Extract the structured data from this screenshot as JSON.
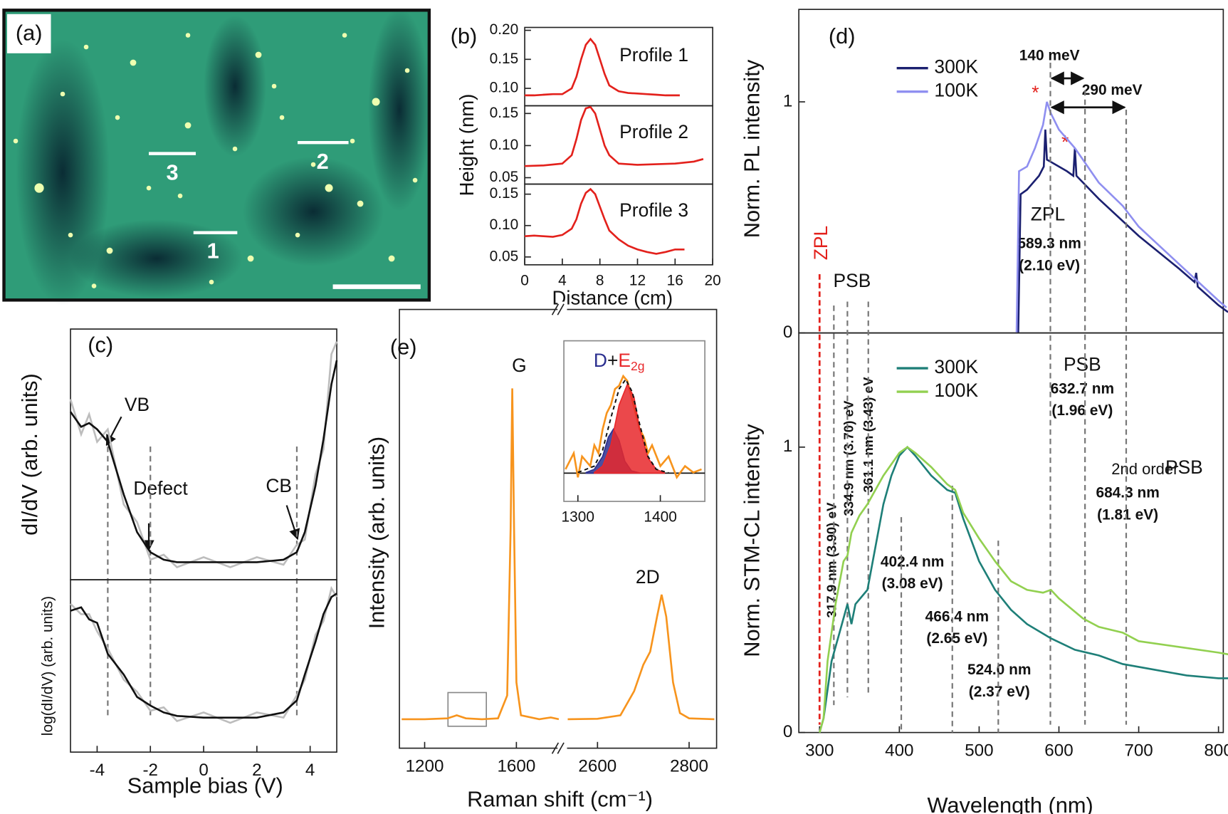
{
  "panel_a": {
    "label": "(a)",
    "line_labels": [
      "1",
      "2",
      "3"
    ]
  },
  "panel_labels": {
    "b": "(b)",
    "c": "(c)",
    "d": "(d)",
    "e": "(e)"
  },
  "chart_data": [
    {
      "type": "line",
      "xlim": [
        0,
        20
      ],
      "ylim": [
        0.07,
        0.205
      ],
      "yticks": [
        {
          "value": 0.1,
          "label": "0.10"
        },
        0.15,
        {
          "value": 0.2,
          "label": "0.20"
        }
      ],
      "annotation": "Profile 1",
      "series": [
        {
          "color": "#e3211c",
          "x": [
            0,
            1,
            2,
            3,
            4,
            5,
            5.5,
            6,
            6.5,
            7,
            7.5,
            8,
            8.5,
            9,
            10,
            11,
            12,
            13,
            14,
            15,
            16,
            16.5
          ],
          "values": [
            0.088,
            0.088,
            0.089,
            0.09,
            0.09,
            0.1,
            0.12,
            0.15,
            0.175,
            0.185,
            0.175,
            0.15,
            0.125,
            0.105,
            0.095,
            0.092,
            0.091,
            0.09,
            0.089,
            0.088,
            0.088,
            0.088
          ]
        }
      ]
    },
    {
      "type": "line",
      "xlim": [
        0,
        20
      ],
      "ylim": [
        0.04,
        0.162
      ],
      "yticks": [
        0.05,
        {
          "value": 0.1,
          "label": "0.10"
        },
        0.15
      ],
      "ylabel": "Height (nm)",
      "annotation": "Profile 2",
      "series": [
        {
          "color": "#e3211c",
          "x": [
            0,
            2,
            4,
            5,
            5.5,
            6,
            6.5,
            7,
            7.5,
            8,
            8.5,
            9,
            10,
            12,
            14,
            16,
            18,
            19
          ],
          "values": [
            0.068,
            0.069,
            0.072,
            0.085,
            0.11,
            0.14,
            0.158,
            0.16,
            0.15,
            0.125,
            0.1,
            0.085,
            0.072,
            0.07,
            0.071,
            0.072,
            0.075,
            0.079
          ]
        }
      ]
    },
    {
      "type": "line",
      "xlim": [
        0,
        20
      ],
      "ylim": [
        0.0375,
        0.166
      ],
      "yticks": [
        0.05,
        {
          "value": 0.1,
          "label": "0.10"
        },
        0.15
      ],
      "xticks": [
        0,
        4,
        8,
        12,
        16,
        20
      ],
      "xlabel": "Distance (cm)",
      "annotation": "Profile 3",
      "series": [
        {
          "color": "#e3211c",
          "x": [
            0,
            1,
            2,
            3,
            4,
            5,
            5.5,
            6,
            6.5,
            7,
            7.5,
            8,
            8.5,
            9,
            10,
            11,
            12,
            13,
            14,
            15,
            16,
            17
          ],
          "values": [
            0.083,
            0.084,
            0.083,
            0.082,
            0.085,
            0.095,
            0.11,
            0.135,
            0.152,
            0.158,
            0.15,
            0.13,
            0.11,
            0.092,
            0.078,
            0.068,
            0.062,
            0.058,
            0.055,
            0.058,
            0.062,
            0.062
          ]
        }
      ]
    },
    {
      "type": "line",
      "xlim": [
        -5,
        5
      ],
      "ylim": [
        0,
        1
      ],
      "ylabel": "dI/dV (arb. units)",
      "annotations": [
        "VB",
        "Defect",
        "CB"
      ],
      "guides": [
        -3.6,
        -2,
        3.5
      ],
      "series": [
        {
          "color": "#bdbdbd",
          "x": [
            -5,
            -4.6,
            -4.3,
            -4,
            -3.6,
            -3,
            -2.5,
            -2,
            -1.5,
            -1,
            0,
            1,
            2,
            3,
            3.5,
            3.8,
            4.2,
            4.5,
            4.8,
            5
          ],
          "values": [
            0.72,
            0.58,
            0.66,
            0.55,
            0.6,
            0.3,
            0.23,
            0.08,
            0.1,
            0.05,
            0.09,
            0.05,
            0.09,
            0.06,
            0.14,
            0.16,
            0.42,
            0.52,
            0.9,
            0.95
          ]
        },
        {
          "color": "#111111",
          "x": [
            -5,
            -4.6,
            -4.3,
            -4,
            -3.6,
            -3,
            -2.5,
            -2,
            -1.5,
            -1,
            0,
            1,
            2,
            3,
            3.5,
            3.8,
            4.2,
            4.5,
            4.8,
            5
          ],
          "values": [
            0.67,
            0.61,
            0.625,
            0.6,
            0.55,
            0.34,
            0.19,
            0.11,
            0.08,
            0.07,
            0.07,
            0.07,
            0.07,
            0.08,
            0.11,
            0.19,
            0.375,
            0.56,
            0.78,
            0.875
          ]
        }
      ]
    },
    {
      "type": "line",
      "xlim": [
        -5,
        5
      ],
      "ylim": [
        0,
        1
      ],
      "xticks": [
        -4,
        -2,
        0,
        2,
        4
      ],
      "ylabel": "log(dI/dV) (arb. units)",
      "xlabel": "Sample bias (V)",
      "series": [
        {
          "color": "#bdbdbd",
          "x": [
            -5,
            -4.6,
            -4.3,
            -4,
            -3.6,
            -3,
            -2.5,
            -2,
            -1.5,
            -1,
            0,
            1,
            2,
            3,
            3.5,
            3.8,
            4.2,
            4.5,
            4.8,
            5
          ],
          "values": [
            0.86,
            0.8,
            0.8,
            0.7,
            0.6,
            0.42,
            0.35,
            0.24,
            0.26,
            0.18,
            0.23,
            0.17,
            0.23,
            0.2,
            0.33,
            0.42,
            0.68,
            0.76,
            0.95,
            0.9
          ]
        },
        {
          "color": "#111111",
          "x": [
            -5,
            -4.6,
            -4.3,
            -4,
            -3.6,
            -3,
            -2.5,
            -2,
            -1.5,
            -1,
            0,
            1,
            2,
            3,
            3.5,
            3.8,
            4.2,
            4.5,
            4.8,
            5
          ],
          "values": [
            0.82,
            0.84,
            0.77,
            0.75,
            0.57,
            0.45,
            0.32,
            0.27,
            0.23,
            0.21,
            0.2,
            0.2,
            0.2,
            0.23,
            0.3,
            0.45,
            0.64,
            0.8,
            0.9,
            0.92
          ]
        }
      ]
    },
    {
      "type": "line",
      "xlim": [
        1090,
        1790
      ],
      "ylim": [
        0,
        1
      ],
      "xticks": [
        1200,
        1600
      ],
      "ylabel": "Intensity (arb. units)",
      "xlabel": "Raman shift (cm⁻¹)",
      "annotation": "G",
      "series": [
        {
          "color": "#f7941d",
          "x": [
            1100,
            1200,
            1300,
            1340,
            1380,
            1450,
            1520,
            1560,
            1575,
            1582,
            1590,
            1600,
            1620,
            1700,
            1750,
            1785
          ],
          "values": [
            0.066,
            0.066,
            0.068,
            0.075,
            0.068,
            0.066,
            0.068,
            0.12,
            0.5,
            0.82,
            0.5,
            0.15,
            0.075,
            0.066,
            0.07,
            0.066
          ]
        }
      ]
    },
    {
      "type": "line",
      "xlim": [
        2530,
        2860
      ],
      "ylim": [
        0,
        1
      ],
      "xticks": [
        2600,
        2800
      ],
      "annotation": "2D",
      "series": [
        {
          "color": "#f7941d",
          "x": [
            2535,
            2600,
            2650,
            2680,
            2700,
            2715,
            2730,
            2740,
            2750,
            2765,
            2780,
            2800,
            2855
          ],
          "values": [
            0.066,
            0.067,
            0.075,
            0.13,
            0.19,
            0.22,
            0.3,
            0.35,
            0.3,
            0.15,
            0.08,
            0.068,
            0.066
          ]
        }
      ]
    },
    {
      "type": "line",
      "xlim": [
        1283,
        1454
      ],
      "ylim": [
        0,
        1
      ],
      "xticks": [
        1300,
        1400
      ],
      "baseline": 0.176,
      "inset_label": [
        "D",
        "+",
        "E",
        "2g"
      ],
      "series": [
        {
          "color": "#f7941d",
          "x": [
            1285,
            1295,
            1300,
            1305,
            1315,
            1320,
            1325,
            1330,
            1335,
            1340,
            1345,
            1350,
            1355,
            1360,
            1365,
            1370,
            1375,
            1380,
            1385,
            1390,
            1400,
            1410,
            1420,
            1430,
            1440,
            1450
          ],
          "values": [
            0.2,
            0.3,
            0.15,
            0.28,
            0.22,
            0.35,
            0.3,
            0.45,
            0.55,
            0.6,
            0.7,
            0.72,
            0.78,
            0.75,
            0.65,
            0.55,
            0.45,
            0.4,
            0.3,
            0.35,
            0.22,
            0.28,
            0.15,
            0.22,
            0.18,
            0.2
          ]
        },
        {
          "color": "#2b2f8f",
          "fill": true,
          "x": [
            1310,
            1320,
            1330,
            1337,
            1343,
            1350,
            1357,
            1365,
            1375
          ],
          "values": [
            0.18,
            0.2,
            0.28,
            0.4,
            0.45,
            0.38,
            0.25,
            0.19,
            0.177
          ]
        },
        {
          "color": "#e8282b",
          "fill": true,
          "x": [
            1320,
            1330,
            1340,
            1350,
            1360,
            1368,
            1375,
            1385,
            1395,
            1405
          ],
          "values": [
            0.18,
            0.22,
            0.35,
            0.6,
            0.73,
            0.65,
            0.45,
            0.27,
            0.2,
            0.178
          ]
        },
        {
          "color": "#111111",
          "dash": true,
          "x": [
            1300,
            1320,
            1330,
            1340,
            1350,
            1358,
            1366,
            1375,
            1385,
            1395,
            1410
          ],
          "values": [
            0.18,
            0.22,
            0.32,
            0.52,
            0.7,
            0.76,
            0.68,
            0.48,
            0.28,
            0.2,
            0.178
          ]
        }
      ]
    },
    {
      "type": "line",
      "xlim": [
        274,
        806
      ],
      "ylim": [
        0,
        1.4
      ],
      "yticks": [
        0,
        1
      ],
      "ylabel": "Norm. PL intensity",
      "zpl_marker": {
        "x": 300,
        "label": "ZPL"
      },
      "annotations": [
        "140 meV",
        "290 meV",
        "ZPL",
        "*",
        "*",
        "PSB"
      ],
      "series": [
        {
          "name": "300K",
          "color": "#1b2070",
          "x": [
            549,
            552,
            560,
            575,
            581,
            583,
            585,
            590,
            610,
            618,
            620,
            622,
            650,
            700,
            750,
            770,
            772,
            774,
            800,
            812
          ],
          "values": [
            0,
            0.6,
            0.62,
            0.68,
            0.72,
            0.88,
            0.75,
            0.74,
            0.7,
            0.68,
            0.8,
            0.68,
            0.58,
            0.42,
            0.28,
            0.22,
            0.26,
            0.2,
            0.12,
            0.09
          ]
        },
        {
          "name": "100K",
          "color": "#8f8ff0",
          "x": [
            547,
            550,
            560,
            570,
            580,
            585,
            590,
            600,
            620,
            650,
            680,
            700,
            750,
            800,
            810
          ],
          "values": [
            0,
            0.7,
            0.72,
            0.8,
            0.9,
            1.0,
            0.95,
            0.88,
            0.8,
            0.65,
            0.55,
            0.46,
            0.3,
            0.14,
            0.11
          ]
        }
      ]
    },
    {
      "type": "line",
      "xlim": [
        274,
        806
      ],
      "ylim": [
        0,
        1.4
      ],
      "yticks": [
        0,
        1
      ],
      "xticks": [
        300,
        400,
        500,
        600,
        700,
        800
      ],
      "ylabel": "Norm. STM-CL intensity",
      "xlabel": "Wavelength (nm)",
      "annotations": [
        "PSB",
        "2nd order",
        "PSB"
      ],
      "markers": [
        {
          "x": 317.9,
          "label": "317.9 nm",
          "energy": "(3.90) eV"
        },
        {
          "x": 334.9,
          "label": "334.9 nm",
          "energy": "(3.70) eV"
        },
        {
          "x": 361.1,
          "label": "361.1 nm",
          "energy": "(3.43) eV"
        },
        {
          "x": 402.4,
          "label": "402.4 nm",
          "energy": "(3.08 eV)"
        },
        {
          "x": 466.4,
          "label": "466.4 nm",
          "energy": "(2.65 eV)"
        },
        {
          "x": 524.0,
          "label": "524.0 nm",
          "energy": "(2.37 eV)"
        },
        {
          "x": 589.3,
          "label": "589.3 nm",
          "energy": "(2.10 eV)"
        },
        {
          "x": 632.7,
          "label": "632.7 nm",
          "energy": "(1.96 eV)"
        },
        {
          "x": 684.3,
          "label": "684.3 nm",
          "energy": "(1.81 eV)"
        }
      ],
      "series": [
        {
          "name": "300K",
          "color": "#1e7f78",
          "x": [
            300,
            305,
            315,
            325,
            335,
            340,
            345,
            360,
            370,
            380,
            390,
            400,
            410,
            420,
            440,
            460,
            470,
            480,
            500,
            520,
            540,
            560,
            590,
            620,
            650,
            680,
            720,
            760,
            800,
            820
          ],
          "values": [
            0,
            0.05,
            0.25,
            0.35,
            0.45,
            0.38,
            0.45,
            0.5,
            0.65,
            0.8,
            0.9,
            0.97,
            1.0,
            0.97,
            0.9,
            0.85,
            0.84,
            0.75,
            0.6,
            0.5,
            0.43,
            0.38,
            0.33,
            0.29,
            0.27,
            0.24,
            0.22,
            0.2,
            0.19,
            0.19
          ]
        },
        {
          "name": "100K",
          "color": "#92d050",
          "x": [
            300,
            305,
            310,
            320,
            330,
            335,
            340,
            350,
            360,
            380,
            400,
            410,
            420,
            440,
            460,
            470,
            480,
            500,
            520,
            540,
            560,
            580,
            590,
            600,
            630,
            650,
            680,
            700,
            750,
            800,
            820
          ],
          "values": [
            0,
            0.05,
            0.25,
            0.45,
            0.6,
            0.62,
            0.7,
            0.76,
            0.8,
            0.9,
            0.98,
            1.0,
            0.98,
            0.93,
            0.87,
            0.85,
            0.77,
            0.68,
            0.6,
            0.53,
            0.5,
            0.49,
            0.5,
            0.47,
            0.4,
            0.37,
            0.35,
            0.32,
            0.3,
            0.28,
            0.27
          ]
        }
      ]
    }
  ]
}
